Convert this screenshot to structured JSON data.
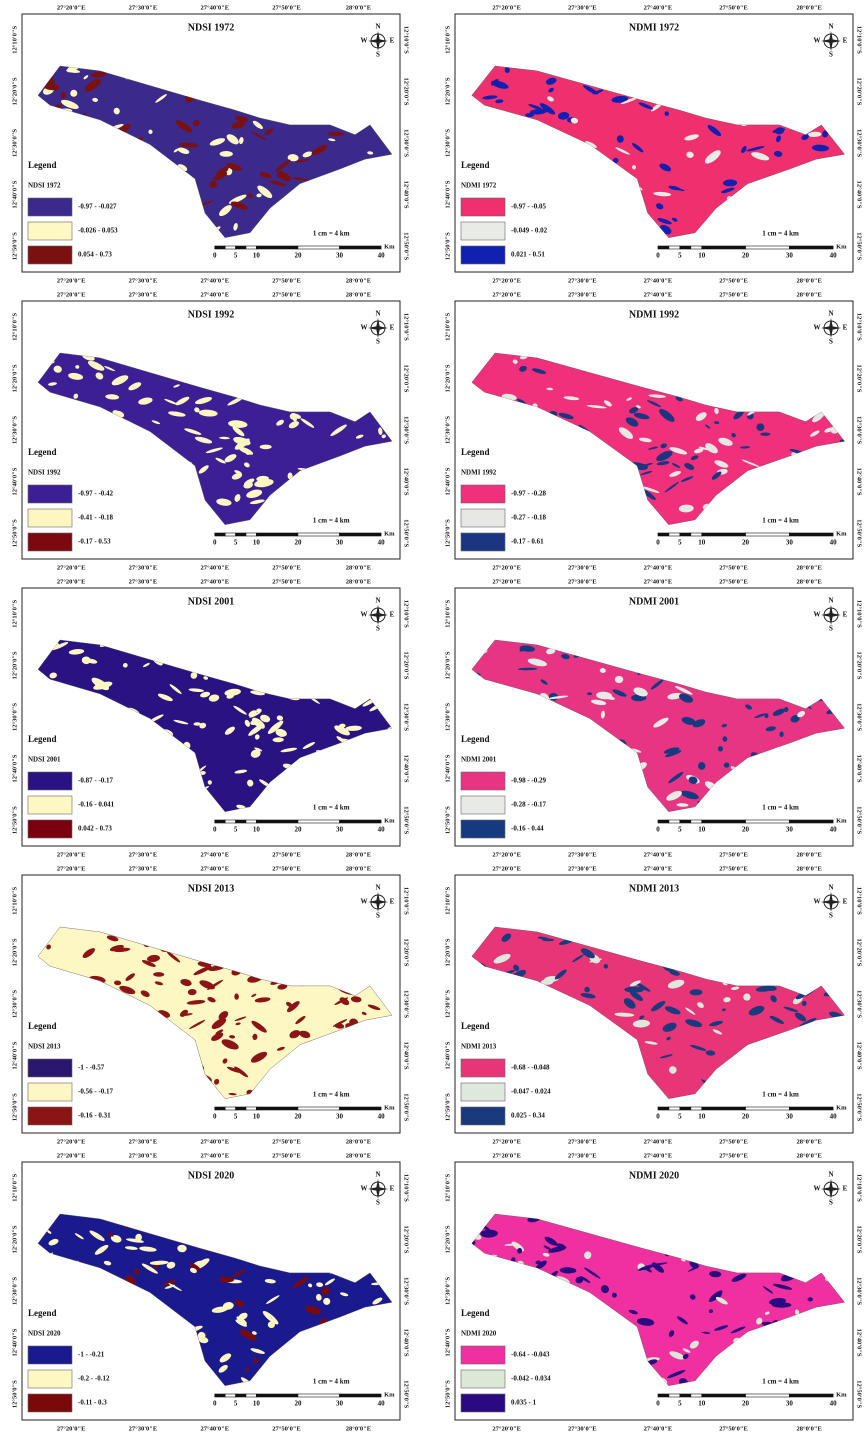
{
  "longitudes": [
    "27°20'0\"E",
    "27°30'0\"E",
    "27°40'0\"E",
    "27°50'0\"E",
    "28°0'0\"E"
  ],
  "latitudes": [
    "12°10'0\"S",
    "12°20'0\"S",
    "12°30'0\"S",
    "12°40'0\"S",
    "12°50'0\"S"
  ],
  "legend_heading": "Legend",
  "scale_text": "1 cm = 4 km",
  "scale_ticks": [
    0,
    5,
    10,
    20,
    30,
    40
  ],
  "scale_unit": "Km",
  "compass": {
    "n": "N",
    "s": "S",
    "e": "E",
    "w": "W"
  },
  "panels": [
    {
      "title": "NDSI 1972",
      "legend_title": "NDSI 1972",
      "classes": [
        {
          "label": "-0.97 - -0.027",
          "color": "#3b2a8c"
        },
        {
          "label": "-0.026 - 0.053",
          "color": "#fdf8c4"
        },
        {
          "label": "0.054 - 0.73",
          "color": "#7a1010"
        }
      ]
    },
    {
      "title": "NDMI 1972",
      "legend_title": "NDMI 1972",
      "classes": [
        {
          "label": "-0.97 - -0.05",
          "color": "#f0306e"
        },
        {
          "label": "-0.049 - 0.02",
          "color": "#e8ebe6"
        },
        {
          "label": "0.021 - 0.51",
          "color": "#1020b0"
        }
      ]
    },
    {
      "title": "NDSI 1992",
      "legend_title": "NDSI 1992",
      "classes": [
        {
          "label": "-0.97 - -0.42",
          "color": "#3d1f95"
        },
        {
          "label": "-0.41 - -0.18",
          "color": "#fdf6c0"
        },
        {
          "label": "-0.17 - 0.53",
          "color": "#7a0a10"
        }
      ]
    },
    {
      "title": "NDMI 1992",
      "legend_title": "NDMI 1992",
      "classes": [
        {
          "label": "-0.97 - -0.28",
          "color": "#f0307a"
        },
        {
          "label": "-0.27 - -0.18",
          "color": "#e7e7e4"
        },
        {
          "label": "-0.17 - 0.61",
          "color": "#1c3580"
        }
      ]
    },
    {
      "title": "NDSI 2001",
      "legend_title": "NDSI 2001",
      "classes": [
        {
          "label": "-0.87 - -0.17",
          "color": "#2a1283"
        },
        {
          "label": "-0.16 - 0.041",
          "color": "#fdf7c4"
        },
        {
          "label": "0.042 - 0.73",
          "color": "#7a0010"
        }
      ]
    },
    {
      "title": "NDMI 2001",
      "legend_title": "NDMI 2001",
      "classes": [
        {
          "label": "-0.98 - -0.29",
          "color": "#e83583"
        },
        {
          "label": "-0.28 - -0.17",
          "color": "#e8eae5"
        },
        {
          "label": "-0.16 - 0.44",
          "color": "#163a80"
        }
      ]
    },
    {
      "title": "NDSI 2013",
      "legend_title": "NDSI 2013",
      "classes": [
        {
          "label": "-1 - -0.57",
          "color": "#2c176e"
        },
        {
          "label": "-0.56 - -0.17",
          "color": "#fdf7c4"
        },
        {
          "label": "-0.16 - 0.31",
          "color": "#8b1515"
        }
      ]
    },
    {
      "title": "NDMI 2013",
      "legend_title": "NDMI 2013",
      "classes": [
        {
          "label": "-0.68 - -0.048",
          "color": "#e83578"
        },
        {
          "label": "-0.047 - 0.024",
          "color": "#dfe8dc"
        },
        {
          "label": "0.025 - 0.34",
          "color": "#1a3a7e"
        }
      ]
    },
    {
      "title": "NDSI 2020",
      "legend_title": "NDSI 2020",
      "classes": [
        {
          "label": "-1 - -0.21",
          "color": "#1a1a8e"
        },
        {
          "label": "-0.2 - -0.12",
          "color": "#fdf7c4"
        },
        {
          "label": "-0.11 - 0.3",
          "color": "#7a0a0a"
        }
      ]
    },
    {
      "title": "NDMI 2020",
      "legend_title": "NDMI 2020",
      "classes": [
        {
          "label": "-0.64 - -0.043",
          "color": "#f030a0"
        },
        {
          "label": "-0.042 - 0.034",
          "color": "#dbe8d6"
        },
        {
          "label": "0.035 - 1",
          "color": "#2a0a80"
        }
      ]
    }
  ]
}
